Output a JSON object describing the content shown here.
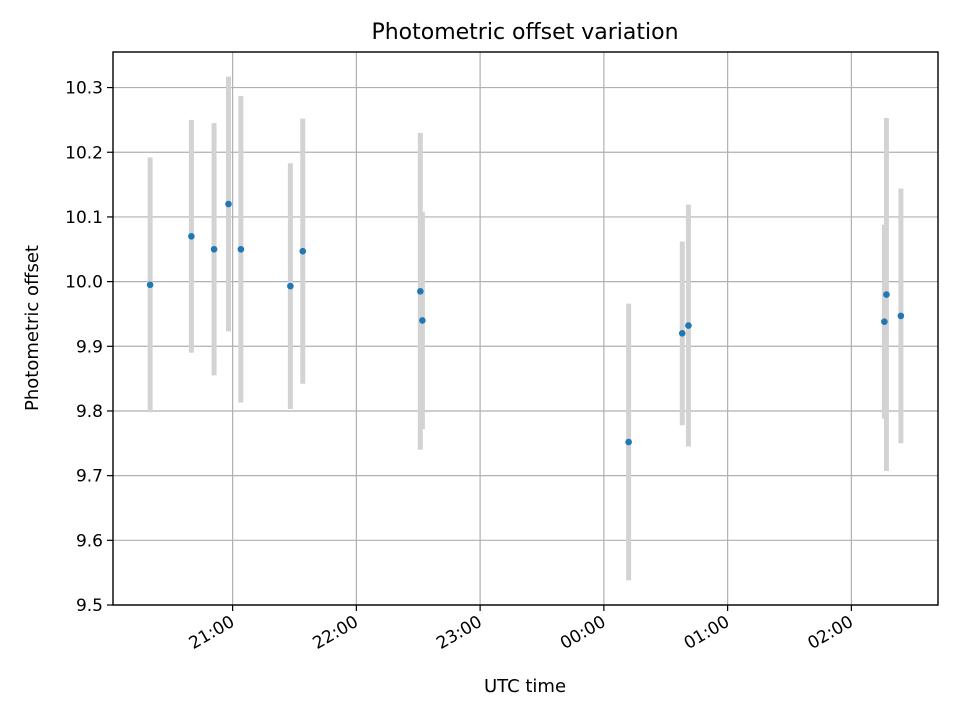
{
  "chart_data": {
    "type": "scatter",
    "title": "Photometric offset variation",
    "xlabel": "UTC time",
    "ylabel": "Photometric offset",
    "x_axis_type": "time",
    "xlim": [
      "20:02",
      "02:42"
    ],
    "ylim": [
      9.5,
      10.355
    ],
    "x_ticks": [
      "21:00",
      "22:00",
      "23:00",
      "00:00",
      "01:00",
      "02:00"
    ],
    "y_ticks": [
      "9.5",
      "9.6",
      "9.7",
      "9.8",
      "9.9",
      "10.0",
      "10.1",
      "10.2",
      "10.3"
    ],
    "grid": true,
    "point_color": "#1f77b4",
    "errorbar_color": "#d3d3d3",
    "points": [
      {
        "x": "20:20",
        "y": 9.995,
        "yerr": 0.197
      },
      {
        "x": "20:40",
        "y": 10.07,
        "yerr": 0.18
      },
      {
        "x": "20:51",
        "y": 10.05,
        "yerr": 0.195
      },
      {
        "x": "20:58",
        "y": 10.12,
        "yerr": 0.197
      },
      {
        "x": "21:04",
        "y": 10.05,
        "yerr": 0.237
      },
      {
        "x": "21:28",
        "y": 9.993,
        "yerr": 0.19
      },
      {
        "x": "21:34",
        "y": 10.047,
        "yerr": 0.205
      },
      {
        "x": "22:31",
        "y": 9.985,
        "yerr": 0.245
      },
      {
        "x": "22:32",
        "y": 9.94,
        "yerr": 0.168
      },
      {
        "x": "00:12",
        "y": 9.752,
        "yerr": 0.214
      },
      {
        "x": "00:38",
        "y": 9.92,
        "yerr": 0.142
      },
      {
        "x": "00:41",
        "y": 9.932,
        "yerr": 0.187
      },
      {
        "x": "02:16",
        "y": 9.938,
        "yerr": 0.15
      },
      {
        "x": "02:17",
        "y": 9.98,
        "yerr": 0.273
      },
      {
        "x": "02:24",
        "y": 9.947,
        "yerr": 0.197
      }
    ]
  }
}
